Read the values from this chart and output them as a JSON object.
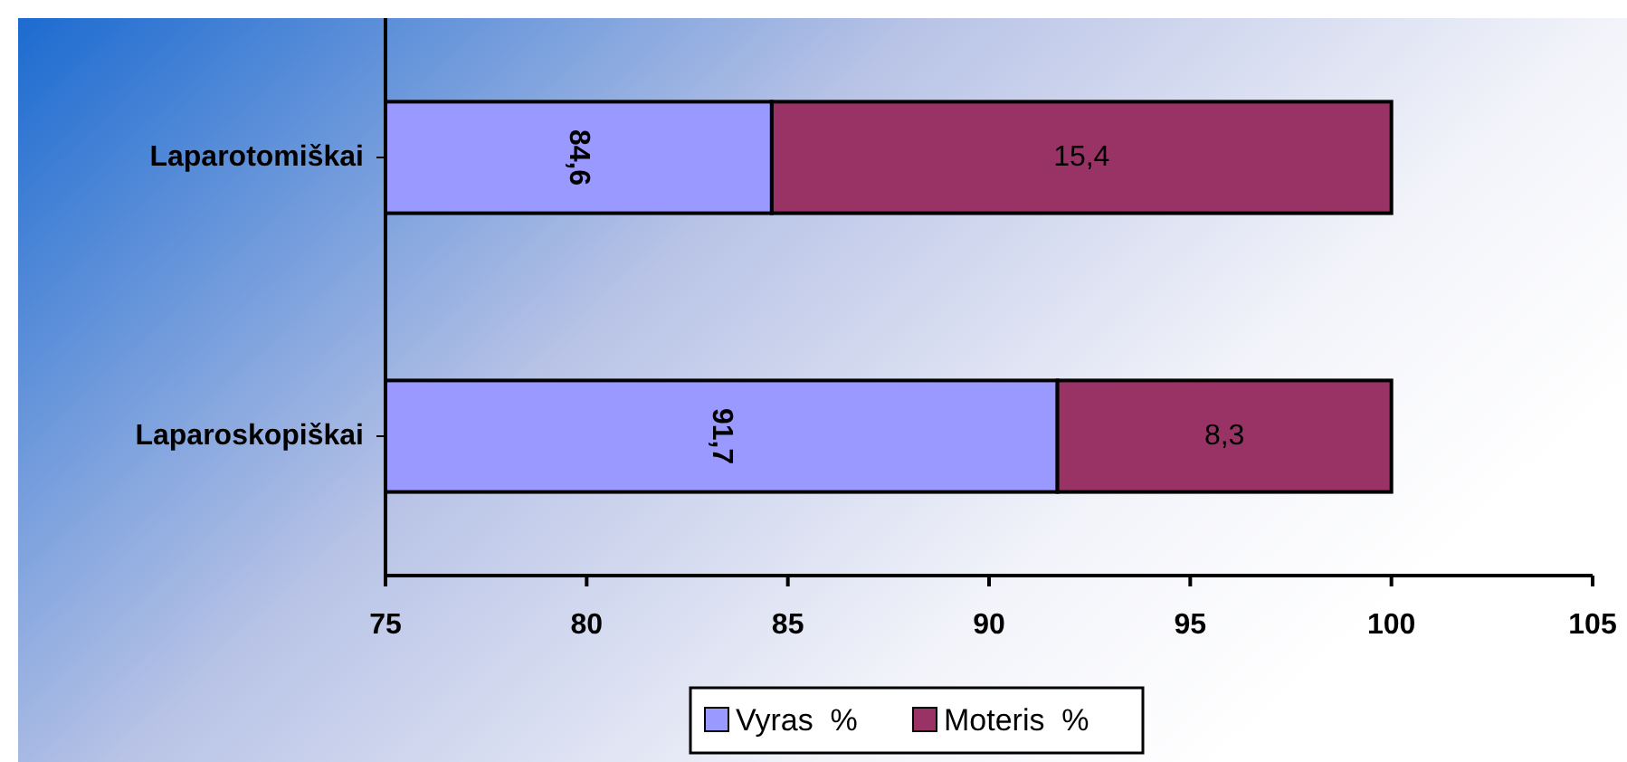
{
  "chart_data": {
    "type": "bar",
    "orientation": "horizontal",
    "stacked": true,
    "categories": [
      "Laparotomiškai",
      "Laparoskopiškai"
    ],
    "series": [
      {
        "name": "Vyras  %",
        "color": "#9999ff",
        "values": [
          84.6,
          91.7
        ],
        "value_labels": [
          "84,6",
          "91,7"
        ]
      },
      {
        "name": "Moteris  %",
        "color": "#993366",
        "values": [
          15.4,
          8.3
        ],
        "base": [
          84.6,
          91.7
        ],
        "value_labels": [
          "15,4",
          "8,3"
        ]
      }
    ],
    "xlim": [
      75,
      105
    ],
    "xticks": [
      75,
      80,
      85,
      90,
      95,
      100,
      105
    ],
    "legend": "bottom"
  }
}
